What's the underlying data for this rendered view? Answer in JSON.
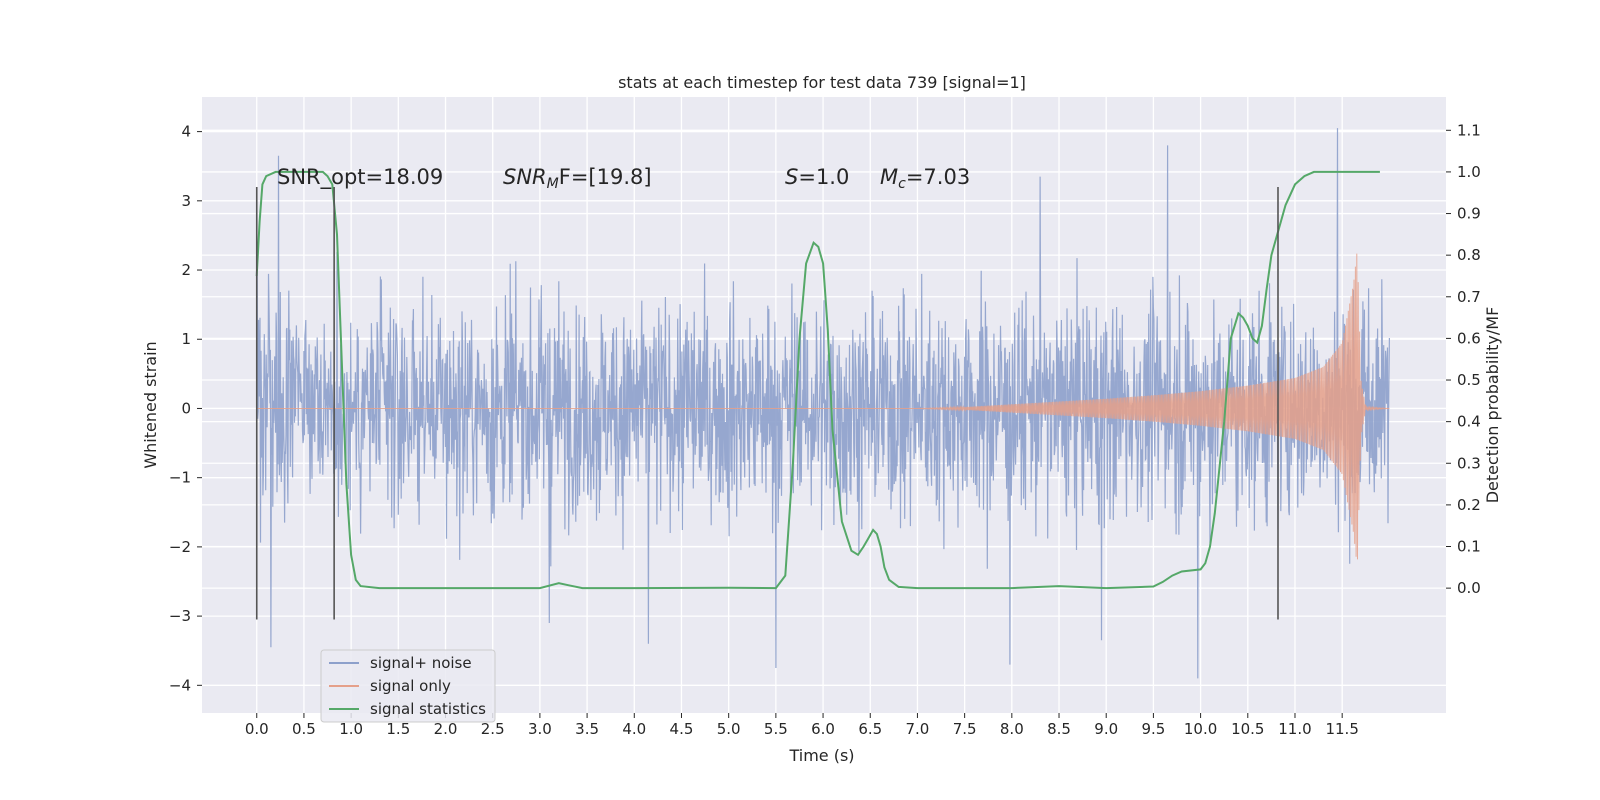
{
  "chart_data": {
    "type": "line",
    "title": "stats at each timestep for test data 739 [signal=1]",
    "xlabel": "Time (s)",
    "ylabel": "Whitened strain",
    "ylabel_right": "Detection probability/MF",
    "xlim": [
      -0.58,
      12.6
    ],
    "ylim": [
      -4.4,
      4.5
    ],
    "ylim_right": [
      -0.3,
      1.18
    ],
    "grid": true,
    "xticks": [
      0.0,
      0.5,
      1.0,
      1.5,
      2.0,
      2.5,
      3.0,
      3.5,
      4.0,
      4.5,
      5.0,
      5.5,
      6.0,
      6.5,
      7.0,
      7.5,
      8.0,
      8.5,
      9.0,
      9.5,
      10.0,
      10.5,
      11.0,
      11.5
    ],
    "xtick_labels": [
      "0.0",
      "0.5",
      "1.0",
      "1.5",
      "2.0",
      "2.5",
      "3.0",
      "3.5",
      "4.0",
      "4.5",
      "5.0",
      "5.5",
      "6.0",
      "6.5",
      "7.0",
      "7.5",
      "8.0",
      "8.5",
      "9.0",
      "9.5",
      "10.0",
      "10.5",
      "11.0",
      "11.5"
    ],
    "yticks": [
      -4,
      -3,
      -2,
      -1,
      0,
      1,
      2,
      3,
      4
    ],
    "ytick_labels": [
      "−4",
      "−3",
      "−2",
      "−1",
      "0",
      "1",
      "2",
      "3",
      "4"
    ],
    "yticks_right": [
      0.0,
      0.1,
      0.2,
      0.3,
      0.4,
      0.5,
      0.6,
      0.7,
      0.8,
      0.9,
      1.0,
      1.1
    ],
    "ytick_labels_right": [
      "0.0",
      "0.1",
      "0.2",
      "0.3",
      "0.4",
      "0.5",
      "0.6",
      "0.7",
      "0.8",
      "0.9",
      "1.0",
      "1.1"
    ],
    "annotations": {
      "snr_opt": "SNR_opt=18.09",
      "snr_mf_base": "SNR",
      "snr_mf_sub": "M",
      "snr_mf_rest": "F=[19.8]",
      "s_italic": "S",
      "s_value": "=1.0",
      "mc_italic": "M",
      "mc_sub": "c",
      "mc_value": "=7.03"
    },
    "legend": {
      "position": "lower-left",
      "entries": [
        "signal+ noise",
        "signal only",
        "signal statistics"
      ]
    },
    "series": [
      {
        "name": "signal+ noise",
        "color": "#8da0cb",
        "x_range": [
          0.0,
          12.0
        ],
        "typical_envelope": [
          -1.6,
          2.0
        ],
        "peaks": [
          {
            "x": 0.15,
            "y": -3.45
          },
          {
            "x": 0.23,
            "y": 3.65
          },
          {
            "x": 3.1,
            "y": -3.1
          },
          {
            "x": 4.15,
            "y": -3.4
          },
          {
            "x": 5.5,
            "y": -3.75
          },
          {
            "x": 7.98,
            "y": -3.7
          },
          {
            "x": 8.3,
            "y": 3.35
          },
          {
            "x": 8.95,
            "y": -3.35
          },
          {
            "x": 9.65,
            "y": 3.8
          },
          {
            "x": 9.97,
            "y": -3.9
          },
          {
            "x": 11.45,
            "y": 4.05
          }
        ]
      },
      {
        "name": "signal only",
        "color": "#e5a08a",
        "description_points_amplitude": [
          [
            7.0,
            0.0
          ],
          [
            7.5,
            0.02
          ],
          [
            8.0,
            0.06
          ],
          [
            8.5,
            0.1
          ],
          [
            9.0,
            0.14
          ],
          [
            9.5,
            0.19
          ],
          [
            10.0,
            0.25
          ],
          [
            10.5,
            0.33
          ],
          [
            11.0,
            0.44
          ],
          [
            11.3,
            0.6
          ],
          [
            11.5,
            0.95
          ],
          [
            11.62,
            1.8
          ],
          [
            11.66,
            2.3
          ],
          [
            11.7,
            0.4
          ],
          [
            11.75,
            0.02
          ],
          [
            12.0,
            0.0
          ]
        ]
      },
      {
        "name": "signal statistics",
        "color": "#55a868",
        "axis": "right",
        "x": [
          0.0,
          0.03,
          0.06,
          0.1,
          0.2,
          0.3,
          0.5,
          0.7,
          0.75,
          0.8,
          0.85,
          0.9,
          0.95,
          1.0,
          1.05,
          1.1,
          1.3,
          2.0,
          3.0,
          3.2,
          3.3,
          3.45,
          4.0,
          5.0,
          5.5,
          5.6,
          5.68,
          5.75,
          5.82,
          5.9,
          5.95,
          6.0,
          6.05,
          6.1,
          6.2,
          6.3,
          6.37,
          6.43,
          6.48,
          6.53,
          6.57,
          6.61,
          6.65,
          6.7,
          6.8,
          7.0,
          8.0,
          8.5,
          9.0,
          9.5,
          9.6,
          9.7,
          9.8,
          10.0,
          10.05,
          10.1,
          10.15,
          10.25,
          10.32,
          10.4,
          10.45,
          10.5,
          10.55,
          10.6,
          10.65,
          10.7,
          10.75,
          10.8,
          10.85,
          10.9,
          11.0,
          11.1,
          11.2,
          11.5,
          11.9
        ],
        "y": [
          0.75,
          0.88,
          0.97,
          0.99,
          1.0,
          1.0,
          1.0,
          1.0,
          0.99,
          0.97,
          0.85,
          0.55,
          0.25,
          0.08,
          0.02,
          0.005,
          0.0,
          0.0,
          0.0,
          0.012,
          0.007,
          0.0,
          0.0,
          0.001,
          0.0,
          0.03,
          0.3,
          0.6,
          0.78,
          0.83,
          0.82,
          0.78,
          0.62,
          0.38,
          0.16,
          0.09,
          0.08,
          0.1,
          0.12,
          0.14,
          0.13,
          0.1,
          0.05,
          0.02,
          0.003,
          0.0,
          0.0,
          0.005,
          0.0,
          0.004,
          0.015,
          0.03,
          0.04,
          0.045,
          0.06,
          0.1,
          0.18,
          0.4,
          0.6,
          0.66,
          0.65,
          0.63,
          0.6,
          0.59,
          0.63,
          0.72,
          0.8,
          0.84,
          0.88,
          0.92,
          0.97,
          0.99,
          1.0,
          1.0,
          1.0
        ]
      }
    ],
    "vertical_markers_x": [
      0.0,
      0.82,
      10.82
    ],
    "vertical_markers_color": "#555555"
  }
}
